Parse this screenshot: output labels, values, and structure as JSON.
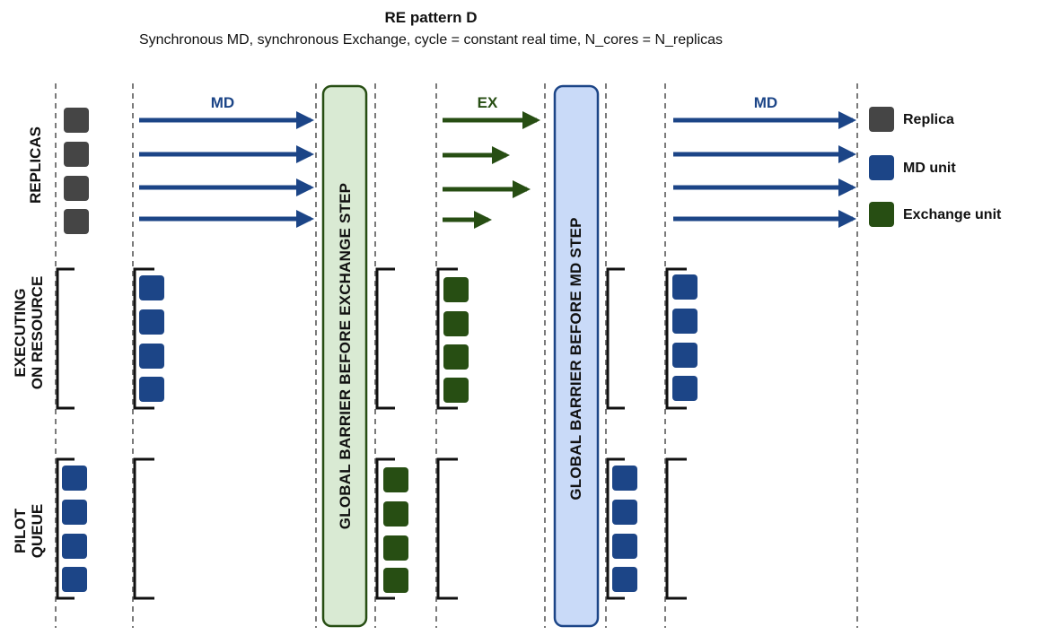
{
  "title": "RE pattern D",
  "subtitle": "Synchronous MD, synchronous Exchange, cycle = constant real time, N_cores = N_replicas",
  "rows": {
    "replicas": "REPLICAS",
    "executing_line1": "EXECUTING",
    "executing_line2": "ON RESOURCE",
    "queue_line1": "PILOT",
    "queue_line2": "QUEUE"
  },
  "phases": {
    "md1": "MD",
    "ex": "EX",
    "md2": "MD"
  },
  "barriers": {
    "exchange": "GLOBAL BARRIER BEFORE EXCHANGE STEP",
    "md": "GLOBAL BARRIER BEFORE MD STEP"
  },
  "legend": {
    "replica": "Replica",
    "md_unit": "MD unit",
    "exchange_unit": "Exchange unit"
  },
  "colors": {
    "replica": "#454545",
    "md_unit": "#1c4587",
    "exchange_unit": "#274e13",
    "barrier_exchange_fill": "#d9ead3",
    "barrier_exchange_stroke": "#274e13",
    "barrier_md_fill": "#c9daf8",
    "barrier_md_stroke": "#1c4587",
    "divider": "#7a7a7a"
  }
}
